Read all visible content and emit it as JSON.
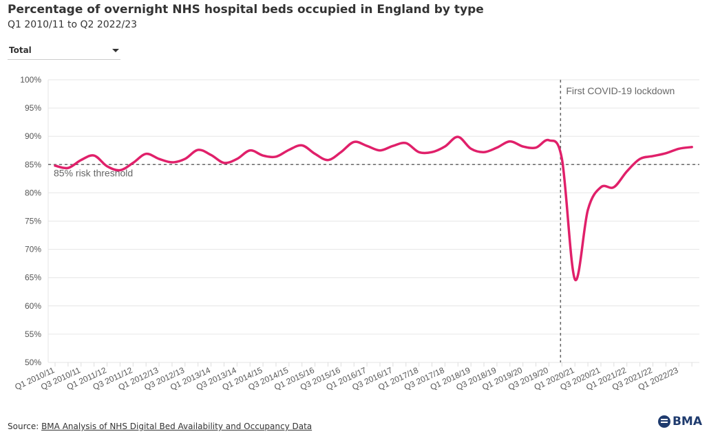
{
  "header": {
    "title": "Percentage of overnight NHS hospital beds occupied in England by type",
    "subtitle": "Q1 2010/11 to Q2 2022/23"
  },
  "dropdown": {
    "selected": "Total"
  },
  "footer": {
    "source_prefix": "Source: ",
    "source_link": "BMA Analysis of NHS Digital Bed Availability and Occupancy Data",
    "logo_text": "BMA"
  },
  "chart_data": {
    "type": "line",
    "title": "Percentage of overnight NHS hospital beds occupied in England by type",
    "ylim": [
      50,
      100
    ],
    "yticks": [
      50,
      55,
      60,
      65,
      70,
      75,
      80,
      85,
      90,
      95,
      100
    ],
    "ytick_labels": [
      "50%",
      "55%",
      "60%",
      "65%",
      "70%",
      "75%",
      "80%",
      "85%",
      "90%",
      "95%",
      "100%"
    ],
    "grid": true,
    "color": "#e0206a",
    "x": [
      "Q1 2010/11",
      "Q2 2010/11",
      "Q3 2010/11",
      "Q4 2010/11",
      "Q1 2011/12",
      "Q2 2011/12",
      "Q3 2011/12",
      "Q4 2011/12",
      "Q1 2012/13",
      "Q2 2012/13",
      "Q3 2012/13",
      "Q4 2012/13",
      "Q1 2013/14",
      "Q2 2013/14",
      "Q3 2013/14",
      "Q4 2013/14",
      "Q1 2014/15",
      "Q2 2014/15",
      "Q3 2014/15",
      "Q4 2014/15",
      "Q1 2015/16",
      "Q2 2015/16",
      "Q3 2015/16",
      "Q4 2015/16",
      "Q1 2016/17",
      "Q2 2016/17",
      "Q3 2016/17",
      "Q4 2016/17",
      "Q1 2017/18",
      "Q2 2017/18",
      "Q3 2017/18",
      "Q4 2017/18",
      "Q1 2018/19",
      "Q2 2018/19",
      "Q3 2018/19",
      "Q4 2018/19",
      "Q1 2019/20",
      "Q2 2019/20",
      "Q3 2019/20",
      "Q4 2019/20",
      "Q1 2020/21",
      "Q2 2020/21",
      "Q3 2020/21",
      "Q4 2020/21",
      "Q1 2021/22",
      "Q2 2021/22",
      "Q3 2021/22",
      "Q4 2021/22",
      "Q1 2022/23",
      "Q2 2022/23"
    ],
    "values": [
      84.8,
      84.4,
      85.8,
      86.6,
      84.7,
      84.0,
      85.3,
      86.9,
      86.0,
      85.4,
      86.0,
      87.6,
      86.7,
      85.3,
      86.0,
      87.5,
      86.6,
      86.4,
      87.6,
      88.4,
      86.9,
      85.8,
      87.2,
      89.0,
      88.3,
      87.5,
      88.3,
      88.8,
      87.2,
      87.2,
      88.2,
      89.9,
      87.8,
      87.2,
      88.0,
      89.1,
      88.2,
      88.0,
      89.3,
      86.0,
      64.7,
      77.0,
      81.0,
      81.0,
      83.8,
      86.0,
      86.5,
      87.0,
      87.8,
      88.1
    ],
    "reference_line": {
      "value": 85,
      "label": "85% risk threshold"
    },
    "annotation": {
      "x": "Q4 2019/20",
      "label": "First COVID-19 lockdown"
    }
  }
}
